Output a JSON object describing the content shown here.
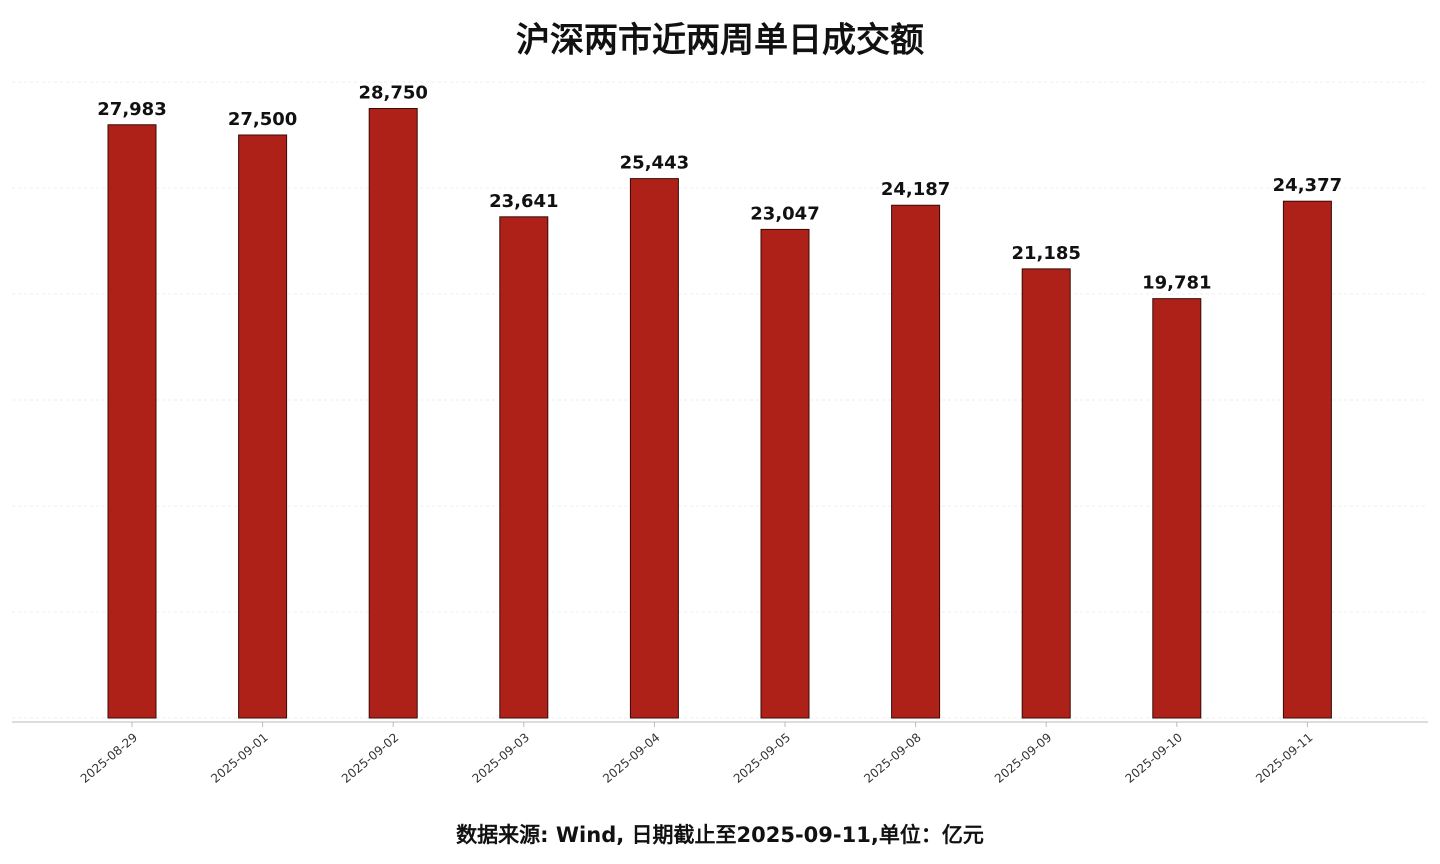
{
  "chart_data": {
    "type": "bar",
    "title": "沪深两市近两周单日成交额",
    "categories": [
      "2025-08-29",
      "2025-09-01",
      "2025-09-02",
      "2025-09-03",
      "2025-09-04",
      "2025-09-05",
      "2025-09-08",
      "2025-09-09",
      "2025-09-10",
      "2025-09-11"
    ],
    "values": [
      27983,
      27500,
      28750,
      23641,
      25443,
      23047,
      24187,
      21185,
      19781,
      24377
    ],
    "value_labels": [
      "27,983",
      "27,500",
      "28,750",
      "23,641",
      "25,443",
      "23,047",
      "24,187",
      "21,185",
      "19,781",
      "24,377"
    ],
    "color": "#ad2118",
    "ylim": [
      0,
      30000
    ],
    "yticks": [
      0,
      5000,
      10000,
      15000,
      20000,
      25000,
      30000
    ],
    "grid": true,
    "footnote": "数据来源: Wind, 日期截止至2025-09-11,单位：亿元"
  }
}
